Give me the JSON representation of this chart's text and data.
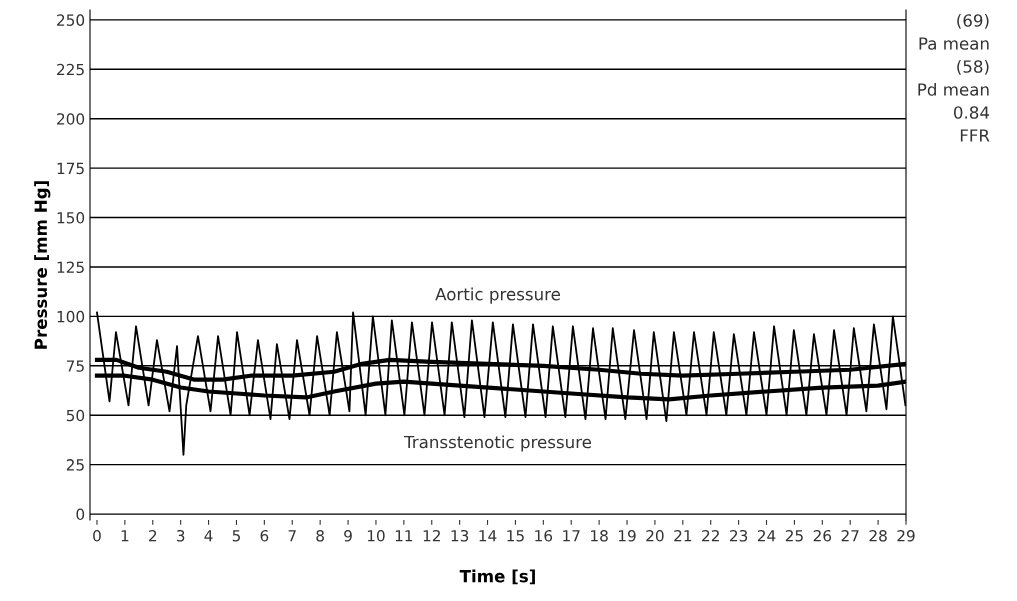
{
  "chart_data": {
    "type": "line",
    "xlabel": "Time [s]",
    "ylabel": "Pressure [mm Hg]",
    "xlim": [
      -0.25,
      29
    ],
    "ylim": [
      -3,
      255
    ],
    "xticks": [
      0,
      1,
      2,
      3,
      4,
      5,
      6,
      7,
      8,
      9,
      10,
      11,
      12,
      13,
      14,
      15,
      16,
      17,
      18,
      19,
      20,
      21,
      22,
      23,
      24,
      25,
      26,
      27,
      28,
      29
    ],
    "yticks": [
      0,
      25,
      50,
      75,
      100,
      125,
      150,
      175,
      200,
      225,
      250
    ],
    "grid": "y",
    "legend": false,
    "marker": "none",
    "series": [
      {
        "color": "#000000",
        "line_style": "solid",
        "x": [
          0.0,
          0.45,
          0.68,
          1.13,
          1.4,
          1.85,
          2.15,
          2.6,
          2.87,
          3.1,
          3.2,
          3.62,
          4.07,
          4.34,
          4.79,
          5.02,
          5.47,
          5.77,
          6.22,
          6.45,
          6.9,
          7.17,
          7.62,
          7.89,
          8.34,
          8.6,
          9.05,
          9.18,
          9.63,
          9.89,
          10.34,
          10.57,
          11.02,
          11.29,
          11.74,
          12.01,
          12.46,
          12.72,
          13.17,
          13.44,
          13.89,
          14.19,
          14.64,
          14.91,
          15.36,
          15.63,
          16.08,
          16.34,
          16.79,
          17.06,
          17.51,
          17.78,
          18.23,
          18.49,
          18.94,
          19.25,
          19.7,
          19.96,
          20.41,
          20.68,
          21.13,
          21.4,
          21.85,
          22.11,
          22.56,
          22.83,
          23.28,
          23.55,
          24.0,
          24.27,
          24.72,
          24.98,
          25.43,
          25.7,
          26.15,
          26.42,
          26.87,
          27.13,
          27.58,
          27.85,
          28.3,
          28.53,
          28.98
        ],
        "values": [
          102,
          57,
          92,
          55,
          95,
          55,
          88,
          52,
          85,
          30,
          55,
          90,
          52,
          90,
          50,
          92,
          50,
          88,
          48,
          86,
          48,
          88,
          50,
          90,
          50,
          92,
          52,
          102,
          50,
          100,
          50,
          98,
          50,
          97,
          50,
          97,
          50,
          97,
          49,
          98,
          49,
          97,
          49,
          96,
          49,
          96,
          49,
          95,
          49,
          95,
          48,
          94,
          48,
          94,
          48,
          93,
          48,
          92,
          47,
          92,
          50,
          92,
          50,
          92,
          50,
          91,
          50,
          92,
          50,
          95,
          50,
          93,
          50,
          91,
          50,
          93,
          50,
          94,
          52,
          96,
          53,
          100,
          55
        ]
      },
      {
        "color": "#000000",
        "line_style": "solid",
        "x": [
          0,
          0.7,
          1.5,
          2.5,
          3.5,
          4.5,
          5.5,
          7,
          8.5,
          9.5,
          10.5,
          12,
          14,
          16,
          18,
          19.5,
          21,
          23,
          25,
          27,
          29
        ],
        "values": [
          78,
          78,
          74,
          72,
          68,
          68,
          70,
          70,
          72,
          76,
          78,
          77,
          76,
          75,
          73,
          71,
          70,
          71,
          72,
          73,
          76
        ]
      },
      {
        "color": "#000000",
        "line_style": "solid",
        "x": [
          0,
          1,
          2,
          3,
          4,
          5,
          6,
          7.5,
          8.5,
          10,
          11,
          13,
          15,
          17,
          19,
          20.5,
          22,
          24,
          26,
          28,
          29
        ],
        "values": [
          70,
          70,
          68,
          64,
          62,
          61,
          60,
          59,
          62,
          66,
          67,
          65,
          63,
          61,
          59,
          58,
          60,
          62,
          64,
          65,
          67
        ]
      }
    ],
    "annotations": [
      "Aortic pressure",
      "Transstenotic pressure",
      "(69)",
      "Pa mean",
      "(58)",
      "Pd mean",
      "0.84",
      "FFR"
    ]
  }
}
